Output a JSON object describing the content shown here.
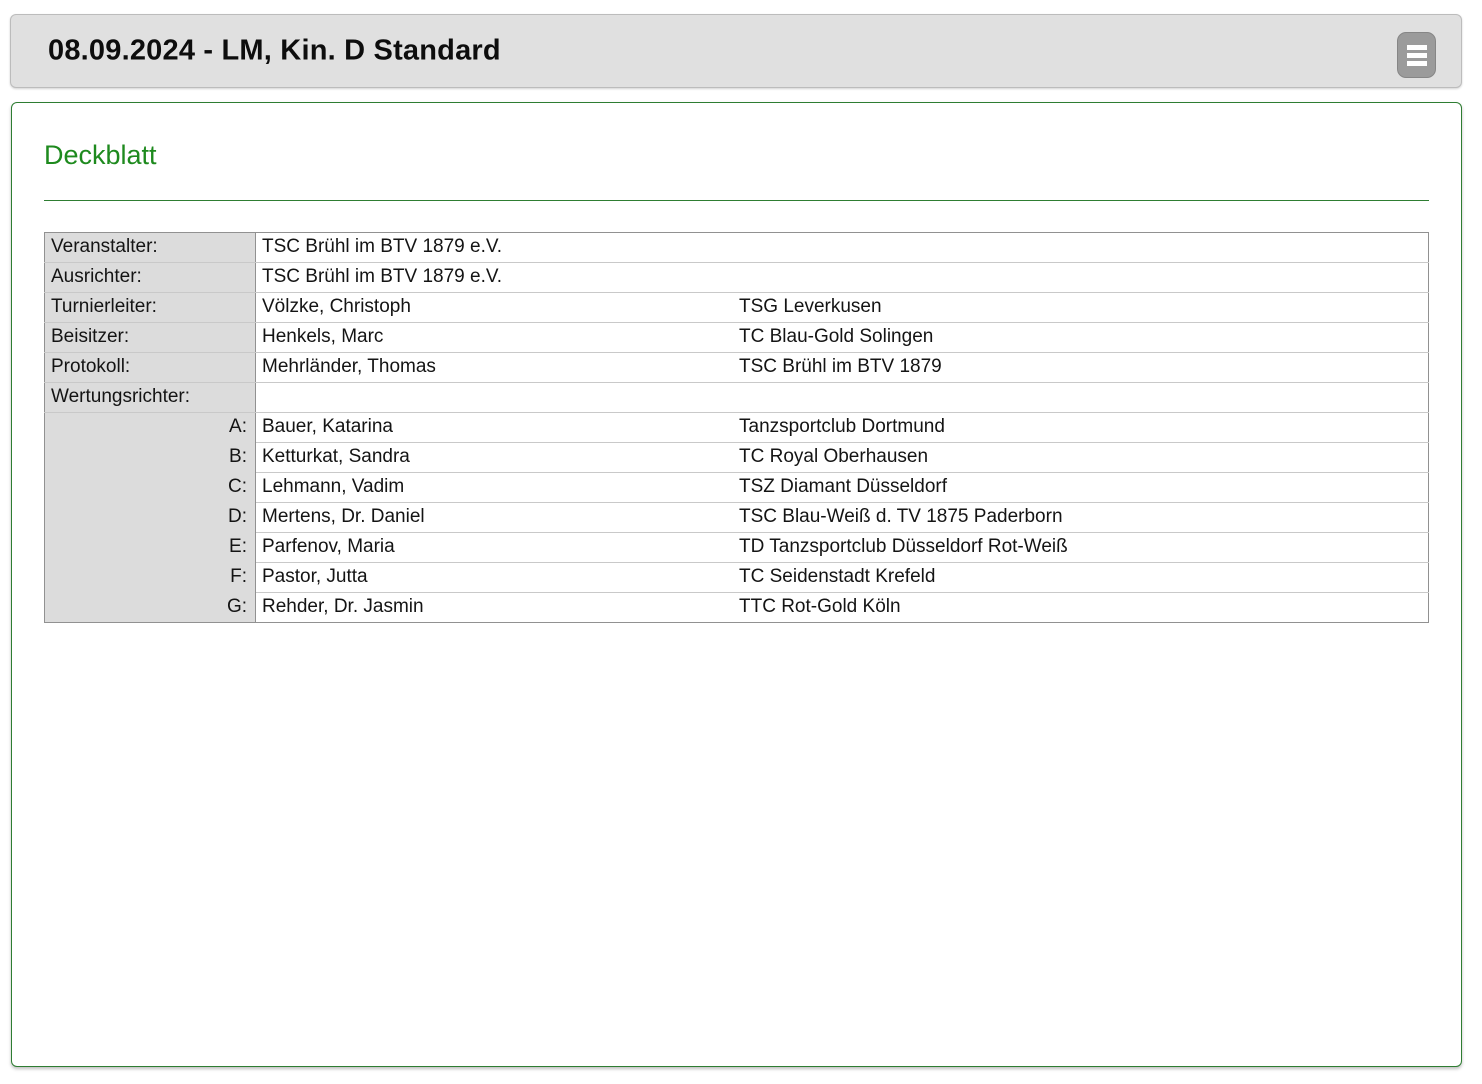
{
  "header": {
    "title": "08.09.2024 - LM, Kin. D Standard",
    "menu_icon": "hamburger-menu"
  },
  "page": {
    "heading": "Deckblatt"
  },
  "colors": {
    "heading_green": "#1e8a1e",
    "panel_border_green": "#2e7d32",
    "header_bg": "#e0e0e0",
    "label_cell_bg": "#dcdcdc",
    "menu_button_bg": "#9b9b9b"
  },
  "table": {
    "rows": [
      {
        "label": "Veranstalter:",
        "name": "TSC Brühl im BTV 1879 e.V.",
        "club": ""
      },
      {
        "label": "Ausrichter:",
        "name": "TSC Brühl im BTV 1879 e.V.",
        "club": ""
      },
      {
        "label": "Turnierleiter:",
        "name": "Völzke, Christoph",
        "club": "TSG Leverkusen"
      },
      {
        "label": "Beisitzer:",
        "name": "Henkels, Marc",
        "club": "TC Blau-Gold Solingen"
      },
      {
        "label": "Protokoll:",
        "name": "Mehrländer, Thomas",
        "club": "TSC Brühl im BTV 1879"
      },
      {
        "label": "Wertungsrichter:",
        "name": "",
        "club": ""
      },
      {
        "letter": "A:",
        "name": "Bauer, Katarina",
        "club": "Tanzsportclub Dortmund"
      },
      {
        "letter": "B:",
        "name": "Ketturkat, Sandra",
        "club": "TC Royal Oberhausen"
      },
      {
        "letter": "C:",
        "name": "Lehmann, Vadim",
        "club": "TSZ Diamant Düsseldorf"
      },
      {
        "letter": "D:",
        "name": "Mertens, Dr. Daniel",
        "club": "TSC Blau-Weiß d. TV 1875 Paderborn"
      },
      {
        "letter": "E:",
        "name": "Parfenov, Maria",
        "club": "TD Tanzsportclub Düsseldorf Rot-Weiß"
      },
      {
        "letter": "F:",
        "name": "Pastor, Jutta",
        "club": "TC Seidenstadt Krefeld"
      },
      {
        "letter": "G:",
        "name": "Rehder, Dr. Jasmin",
        "club": "TTC Rot-Gold Köln"
      }
    ]
  }
}
